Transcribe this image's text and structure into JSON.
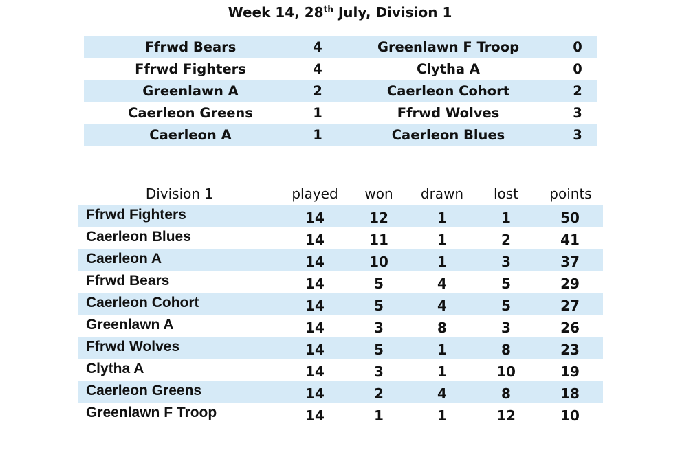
{
  "title": {
    "text": "Week 14, 28",
    "sup": "th",
    "rest": " July, Division 1"
  },
  "results": [
    {
      "home": "Ffrwd Bears",
      "home_score": "4",
      "away": "Greenlawn F Troop",
      "away_score": "0"
    },
    {
      "home": "Ffrwd Fighters",
      "home_score": "4",
      "away": "Clytha A",
      "away_score": "0"
    },
    {
      "home": "Greenlawn A",
      "home_score": "2",
      "away": "Caerleon Cohort",
      "away_score": "2"
    },
    {
      "home": "Caerleon Greens",
      "home_score": "1",
      "away": "Ffrwd Wolves",
      "away_score": "3"
    },
    {
      "home": "Caerleon A",
      "home_score": "1",
      "away": "Caerleon Blues",
      "away_score": "3"
    }
  ],
  "standings": {
    "headers": {
      "name": "Division 1",
      "played": "played",
      "won": "won",
      "drawn": "drawn",
      "lost": "lost",
      "points": "points"
    },
    "rows": [
      {
        "name": "Ffrwd Fighters",
        "played": "14",
        "won": "12",
        "drawn": "1",
        "lost": "1",
        "points": "50"
      },
      {
        "name": "Caerleon Blues",
        "played": "14",
        "won": "11",
        "drawn": "1",
        "lost": "2",
        "points": "41"
      },
      {
        "name": "Caerleon A",
        "played": "14",
        "won": "10",
        "drawn": "1",
        "lost": "3",
        "points": "37"
      },
      {
        "name": "Ffrwd Bears",
        "played": "14",
        "won": "5",
        "drawn": "4",
        "lost": "5",
        "points": "29"
      },
      {
        "name": "Caerleon Cohort",
        "played": "14",
        "won": "5",
        "drawn": "4",
        "lost": "5",
        "points": "27"
      },
      {
        "name": "Greenlawn A",
        "played": "14",
        "won": "3",
        "drawn": "8",
        "lost": "3",
        "points": "26"
      },
      {
        "name": "Ffrwd Wolves",
        "played": "14",
        "won": "5",
        "drawn": "1",
        "lost": "8",
        "points": "23"
      },
      {
        "name": "Clytha A",
        "played": "14",
        "won": "3",
        "drawn": "1",
        "lost": "10",
        "points": "19"
      },
      {
        "name": "Caerleon Greens",
        "played": "14",
        "won": "2",
        "drawn": "4",
        "lost": "8",
        "points": "18"
      },
      {
        "name": "Greenlawn F Troop",
        "played": "14",
        "won": "1",
        "drawn": "1",
        "lost": "12",
        "points": "10"
      }
    ]
  },
  "colors": {
    "row_shade": "#d6eaf7",
    "text": "#111111",
    "background": "#ffffff"
  }
}
